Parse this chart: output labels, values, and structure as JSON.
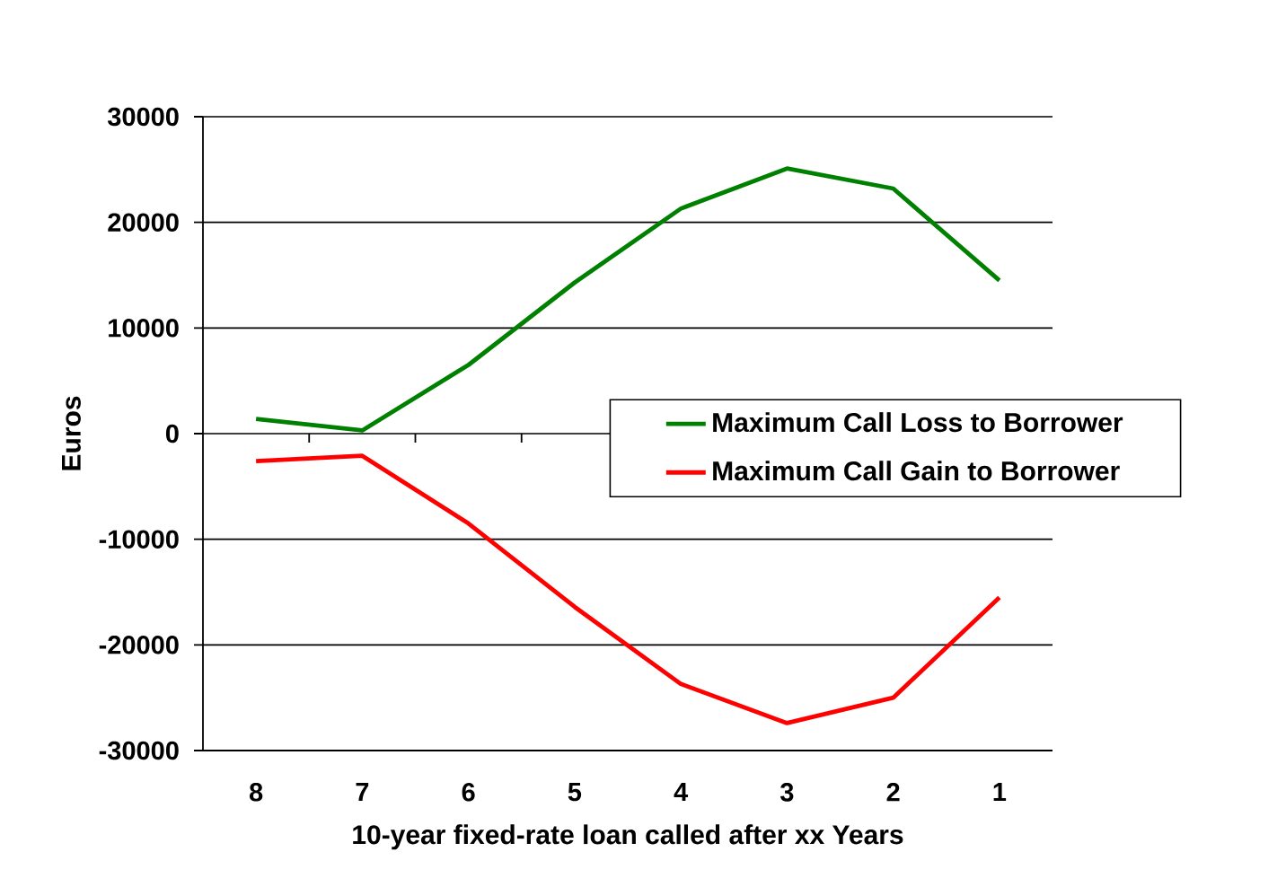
{
  "chart_data": {
    "type": "line",
    "xlabel": "10-year fixed-rate loan called after xx Years",
    "ylabel": "Euros",
    "categories": [
      "8",
      "7",
      "6",
      "5",
      "4",
      "3",
      "2",
      "1"
    ],
    "series": [
      {
        "name": "Maximum Call Loss to Borrower",
        "color": "#008000",
        "values": [
          1400,
          300,
          6500,
          14300,
          21300,
          25100,
          23200,
          14500
        ]
      },
      {
        "name": "Maximum Call Gain to Borrower",
        "color": "#ff0000",
        "values": [
          -2600,
          -2100,
          -8500,
          -16400,
          -23700,
          -27400,
          -25000,
          -15500
        ]
      }
    ],
    "ylim": [
      -30000,
      30000
    ],
    "yticks": [
      -30000,
      -20000,
      -10000,
      0,
      10000,
      20000,
      30000
    ],
    "grid": "y",
    "legend": "right",
    "line_style": "solid"
  }
}
